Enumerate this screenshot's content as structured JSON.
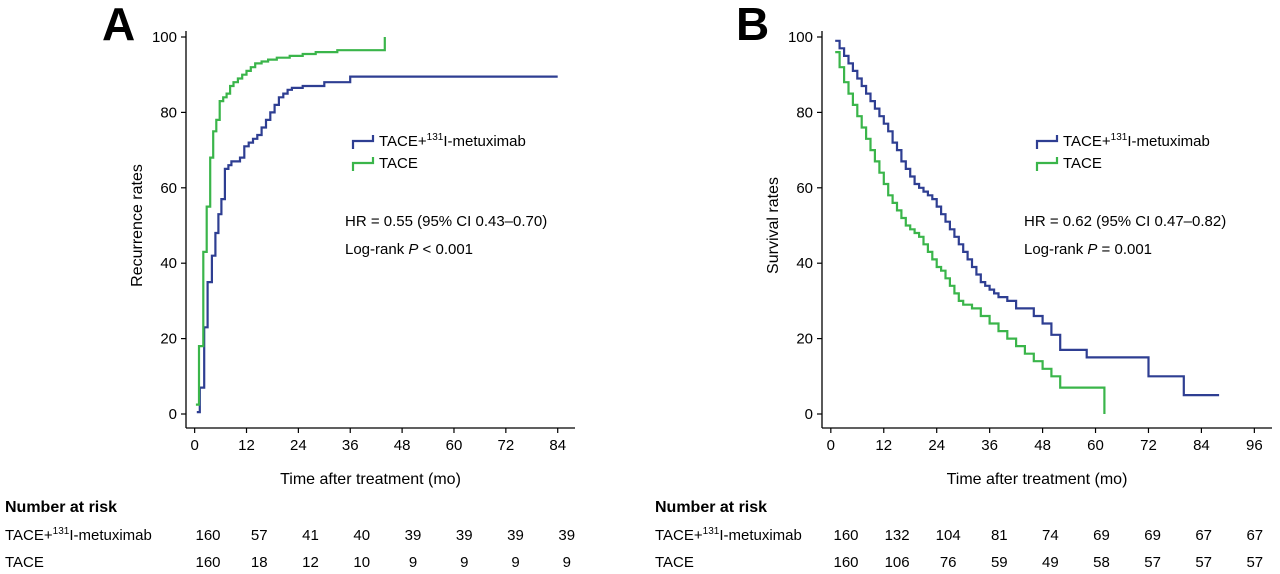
{
  "colors": {
    "tace_131i": "#2e3e92",
    "tace": "#3ab54a",
    "axis": "#000000"
  },
  "chart_data": [
    {
      "type": "line",
      "panel_label": "A",
      "ylabel": "Recurrence rates",
      "xlabel": "Time after treatment (mo)",
      "xlim": [
        -2,
        88
      ],
      "ylim": [
        0,
        100
      ],
      "xticks": [
        0,
        12,
        24,
        36,
        48,
        60,
        72,
        84
      ],
      "yticks": [
        0,
        20,
        40,
        60,
        80,
        100
      ],
      "grid": false,
      "legend_position": "center-right",
      "series": [
        {
          "name": "TACE+131I-metuximab",
          "name_prefix": "TACE+",
          "name_sup": "131",
          "name_suffix": "I-metuximab",
          "color_key": "tace_131i",
          "x": [
            0.5,
            1.2,
            2.2,
            3,
            4,
            4.8,
            5.5,
            6.2,
            7,
            7.8,
            8.5,
            9.5,
            10.5,
            11.5,
            12.5,
            13.5,
            14.5,
            15.5,
            16.5,
            17.5,
            18.5,
            19.5,
            20.5,
            21.5,
            22.5,
            24,
            25,
            30,
            36,
            42,
            84
          ],
          "y": [
            0.5,
            7,
            23,
            35,
            42,
            48,
            53,
            57,
            65,
            66,
            67,
            67,
            68,
            71,
            72,
            73,
            74,
            76,
            78,
            80,
            82,
            84,
            85,
            86,
            86.5,
            86.5,
            87,
            88,
            89.5,
            89.5,
            89.5
          ]
        },
        {
          "name": "TACE",
          "color_key": "tace",
          "x": [
            0.3,
            1,
            2,
            2.8,
            3.6,
            4.3,
            5,
            5.8,
            6.6,
            7.4,
            8.2,
            9,
            10,
            11,
            12,
            13,
            14,
            15.5,
            17,
            19,
            22,
            25,
            28,
            33,
            36,
            40,
            44
          ],
          "y": [
            2.5,
            18,
            43,
            55,
            68,
            75,
            78,
            83,
            84,
            85,
            87,
            88,
            89,
            90,
            91,
            92,
            93,
            93.5,
            94,
            94.5,
            95,
            95.5,
            96,
            96.5,
            96.5,
            96.5,
            100
          ]
        }
      ],
      "annotations": {
        "hr": "HR = 0.55 (95% CI 0.43–0.70)",
        "logrank_prefix": "Log-rank ",
        "logrank_p": "P",
        "logrank_suffix": " < 0.001"
      },
      "risk_table": {
        "title": "Number at risk",
        "rows": [
          {
            "label_prefix": "TACE+",
            "label_sup": "131",
            "label_suffix": "I-metuximab",
            "values": [
              "160",
              "57",
              "41",
              "40",
              "39",
              "39",
              "39",
              "39"
            ]
          },
          {
            "label_prefix": "TACE",
            "label_sup": "",
            "label_suffix": "",
            "values": [
              "160",
              "18",
              "12",
              "10",
              "9",
              "9",
              "9",
              "9"
            ]
          }
        ]
      }
    },
    {
      "type": "line",
      "panel_label": "B",
      "ylabel": "Survival rates",
      "xlabel": "Time after treatment (mo)",
      "xlim": [
        -2,
        100
      ],
      "ylim": [
        0,
        100
      ],
      "xticks": [
        0,
        12,
        24,
        36,
        48,
        60,
        72,
        84,
        96
      ],
      "yticks": [
        0,
        20,
        40,
        60,
        80,
        100
      ],
      "grid": false,
      "legend_position": "center-right",
      "series": [
        {
          "name": "TACE+131I-metuximab",
          "name_prefix": "TACE+",
          "name_sup": "131",
          "name_suffix": "I-metuximab",
          "color_key": "tace_131i",
          "x": [
            1,
            2,
            3,
            4,
            5,
            6,
            7,
            8,
            9,
            10,
            11,
            12,
            13,
            14,
            15,
            16,
            17,
            18,
            19,
            20,
            21,
            22,
            23,
            24,
            25,
            26,
            27,
            28,
            29,
            30,
            31,
            32,
            33,
            34,
            35,
            36,
            37,
            38,
            40,
            42,
            46,
            48,
            50,
            52,
            58,
            72,
            80,
            88
          ],
          "y": [
            99,
            97,
            95,
            93,
            91,
            89,
            87,
            85,
            83,
            81,
            79,
            77,
            75,
            72,
            70,
            67,
            65,
            63,
            61,
            60,
            59,
            58,
            57,
            55,
            53,
            51,
            49,
            47,
            45,
            43,
            41,
            39,
            37,
            35,
            34,
            33,
            32,
            31,
            30,
            28,
            26,
            24,
            21,
            17,
            15,
            10,
            5,
            5
          ]
        },
        {
          "name": "TACE",
          "color_key": "tace",
          "x": [
            1,
            2,
            3,
            4,
            5,
            6,
            7,
            8,
            9,
            10,
            11,
            12,
            13,
            14,
            15,
            16,
            17,
            18,
            19,
            20,
            21,
            22,
            23,
            24,
            25,
            26,
            27,
            28,
            29,
            30,
            32,
            34,
            36,
            38,
            40,
            42,
            44,
            46,
            48,
            50,
            52,
            62
          ],
          "y": [
            96,
            92,
            88,
            85,
            82,
            79,
            76,
            73,
            70,
            67,
            64,
            61,
            58,
            56,
            54,
            52,
            50,
            49,
            48,
            47,
            45,
            43,
            41,
            39,
            38,
            36,
            34,
            32,
            30,
            29,
            28,
            26,
            24,
            22,
            20,
            18,
            16,
            14,
            12,
            10,
            7,
            0
          ]
        }
      ],
      "annotations": {
        "hr": "HR = 0.62 (95% CI 0.47–0.82)",
        "logrank_prefix": "Log-rank ",
        "logrank_p": "P",
        "logrank_suffix": " = 0.001"
      },
      "risk_table": {
        "title": "Number at risk",
        "rows": [
          {
            "label_prefix": "TACE+",
            "label_sup": "131",
            "label_suffix": "I-metuximab",
            "values": [
              "160",
              "132",
              "104",
              "81",
              "74",
              "69",
              "69",
              "67",
              "67"
            ]
          },
          {
            "label_prefix": "TACE",
            "label_sup": "",
            "label_suffix": "",
            "values": [
              "160",
              "106",
              "76",
              "59",
              "49",
              "58",
              "57",
              "57",
              "57"
            ]
          }
        ]
      }
    }
  ]
}
